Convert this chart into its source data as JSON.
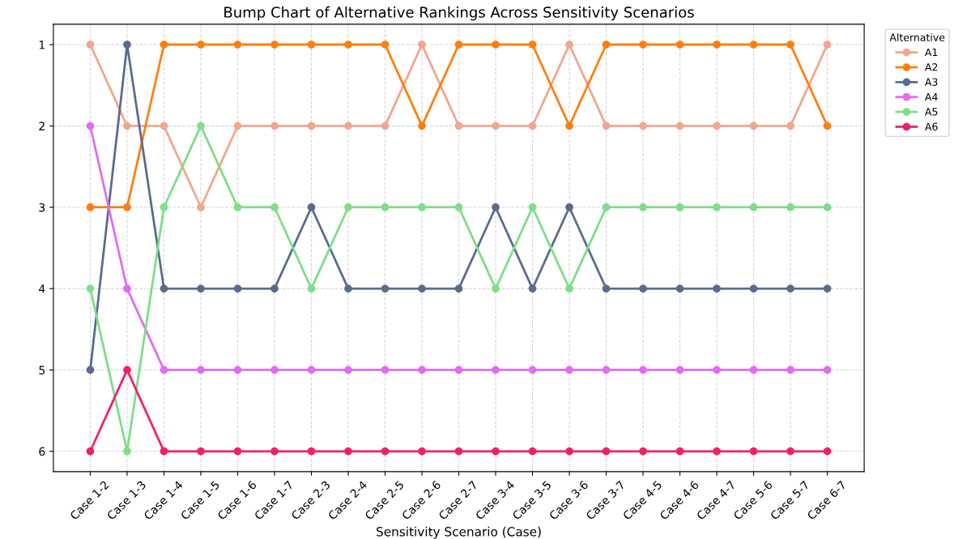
{
  "chart_data": {
    "type": "line",
    "title": "Bump Chart of Alternative Rankings Across Sensitivity Scenarios",
    "xlabel": "Sensitivity Scenario (Case)",
    "legend_title": "Alternative",
    "categories": [
      "Case 1-2",
      "Case 1-3",
      "Case 1-4",
      "Case 1-5",
      "Case 1-6",
      "Case 1-7",
      "Case 2-3",
      "Case 2-4",
      "Case 2-5",
      "Case 2-6",
      "Case 2-7",
      "Case 3-4",
      "Case 3-5",
      "Case 3-6",
      "Case 3-7",
      "Case 4-5",
      "Case 4-6",
      "Case 4-7",
      "Case 5-6",
      "Case 5-7",
      "Case 6-7"
    ],
    "series": [
      {
        "name": "A1",
        "color": "#f2a68c",
        "values": [
          1,
          2,
          2,
          3,
          2,
          2,
          2,
          2,
          2,
          1,
          2,
          2,
          2,
          1,
          2,
          2,
          2,
          2,
          2,
          2,
          1
        ]
      },
      {
        "name": "A2",
        "color": "#ff7f0e",
        "values": [
          3,
          3,
          1,
          1,
          1,
          1,
          1,
          1,
          1,
          2,
          1,
          1,
          1,
          2,
          1,
          1,
          1,
          1,
          1,
          1,
          2
        ]
      },
      {
        "name": "A3",
        "color": "#5b6b8f",
        "values": [
          5,
          1,
          4,
          4,
          4,
          4,
          3,
          4,
          4,
          4,
          4,
          3,
          4,
          3,
          4,
          4,
          4,
          4,
          4,
          4,
          4
        ]
      },
      {
        "name": "A4",
        "color": "#e06cf2",
        "values": [
          2,
          4,
          5,
          5,
          5,
          5,
          5,
          5,
          5,
          5,
          5,
          5,
          5,
          5,
          5,
          5,
          5,
          5,
          5,
          5,
          5
        ]
      },
      {
        "name": "A5",
        "color": "#7ddf86",
        "values": [
          4,
          6,
          3,
          2,
          3,
          3,
          4,
          3,
          3,
          3,
          3,
          4,
          3,
          4,
          3,
          3,
          3,
          3,
          3,
          3,
          3
        ]
      },
      {
        "name": "A6",
        "color": "#f0206e",
        "values": [
          6,
          5,
          6,
          6,
          6,
          6,
          6,
          6,
          6,
          6,
          6,
          6,
          6,
          6,
          6,
          6,
          6,
          6,
          6,
          6,
          6
        ]
      }
    ],
    "ylim": [
      6.25,
      0.75
    ],
    "yticks": [
      1,
      2,
      3,
      4,
      5,
      6
    ],
    "grid": true,
    "legend": "top right",
    "marker": "circle",
    "line_style": "solid"
  }
}
